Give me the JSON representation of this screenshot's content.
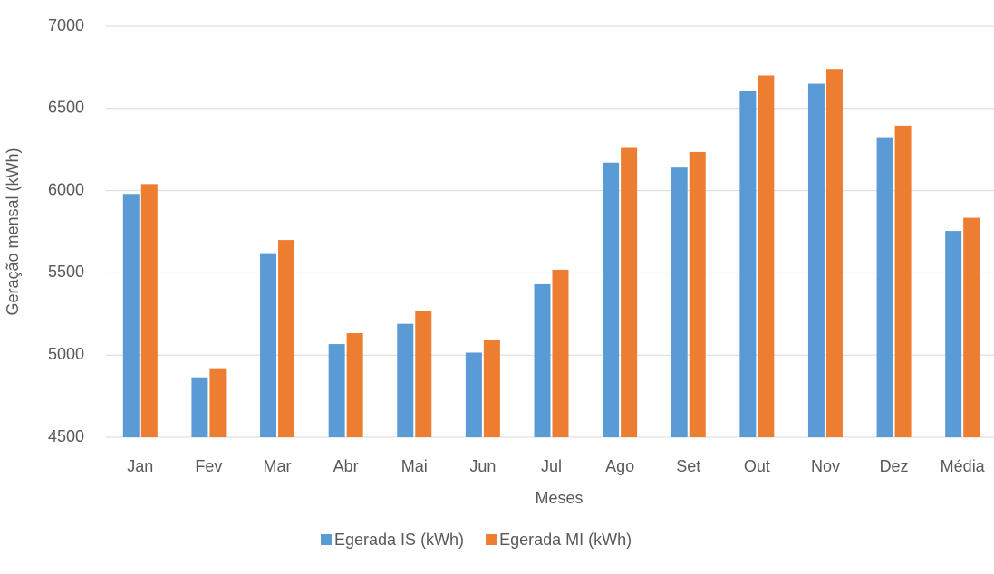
{
  "chart_data": {
    "type": "bar",
    "x_label": "Meses",
    "y_label": "Geração mensal (kWh)",
    "categories": [
      "Jan",
      "Fev",
      "Mar",
      "Abr",
      "Mai",
      "Jun",
      "Jul",
      "Ago",
      "Set",
      "Out",
      "Nov",
      "Dez",
      "Média"
    ],
    "series": [
      {
        "name": "Egerada IS (kWh)",
        "color": "#5b9bd5",
        "values": [
          5980,
          4865,
          5620,
          5067,
          5190,
          5015,
          5431,
          6170,
          6140,
          6605,
          6650,
          6325,
          5755
        ]
      },
      {
        "name": "Egerada MI (kWh)",
        "color": "#ed7d31",
        "values": [
          6040,
          4915,
          5700,
          5133,
          5271,
          5095,
          5519,
          6265,
          6235,
          6700,
          6740,
          6395,
          5835
        ]
      }
    ],
    "ylim": [
      4500,
      7000
    ],
    "yticks": [
      4500,
      5000,
      5500,
      6000,
      6500,
      7000
    ],
    "grid": true,
    "legend": "bottom"
  }
}
